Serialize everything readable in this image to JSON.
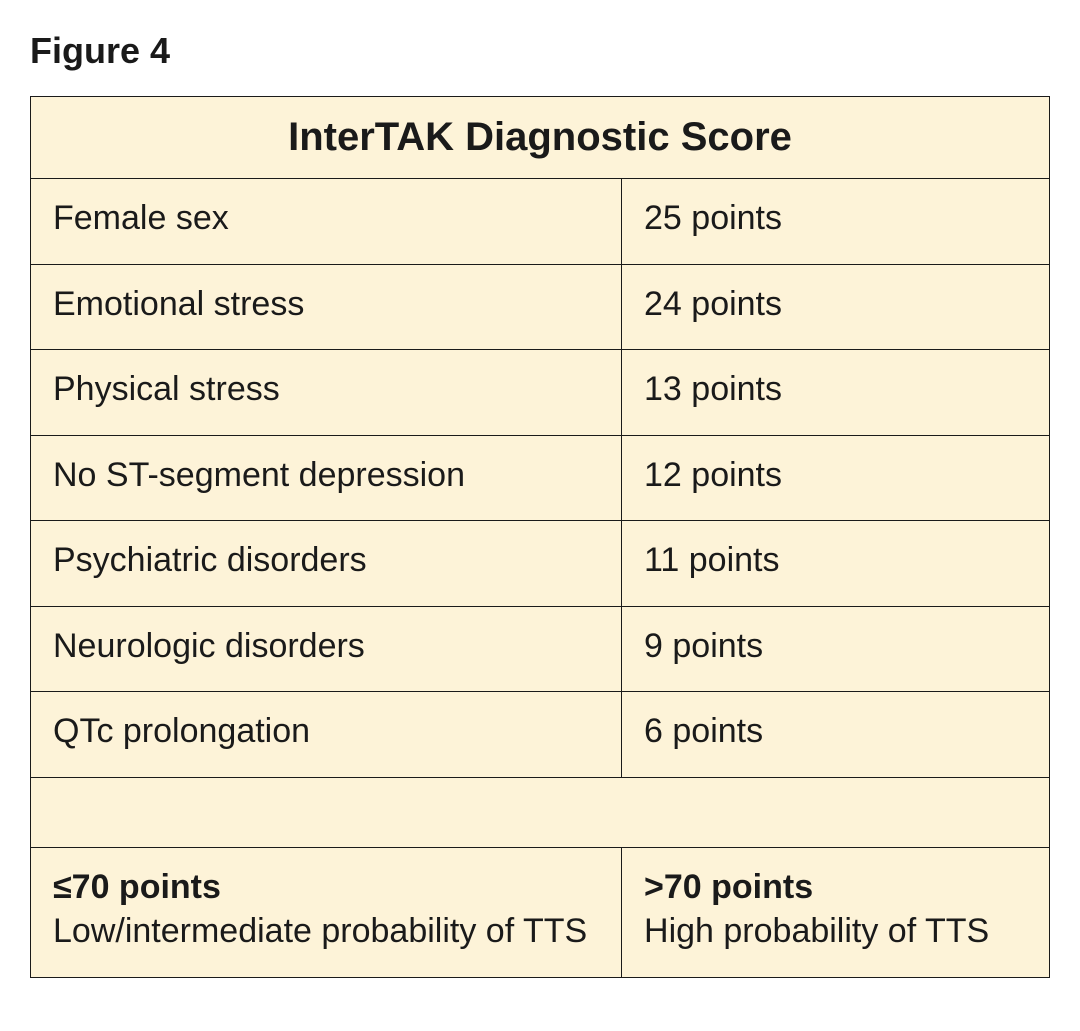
{
  "figure_label": "Figure 4",
  "table": {
    "title": "InterTAK Diagnostic Score",
    "bg_color": "#fdf3d8",
    "border_color": "#1a1a1a",
    "rows": [
      {
        "criterion": "Female sex",
        "points": "25 points"
      },
      {
        "criterion": "Emotional stress",
        "points": "24 points"
      },
      {
        "criterion": "Physical stress",
        "points": "13 points"
      },
      {
        "criterion": "No ST-segment depression",
        "points": "12 points"
      },
      {
        "criterion": "Psychiatric disorders",
        "points": "11 points"
      },
      {
        "criterion": "Neurologic disorders",
        "points": "9 points"
      },
      {
        "criterion": "QTc prolongation",
        "points": "6 points"
      }
    ],
    "interpretation": {
      "low": {
        "threshold": "≤70 points",
        "description": "Low/intermediate probability of TTS"
      },
      "high": {
        "threshold": ">70 points",
        "description": "High probability of TTS"
      }
    }
  }
}
